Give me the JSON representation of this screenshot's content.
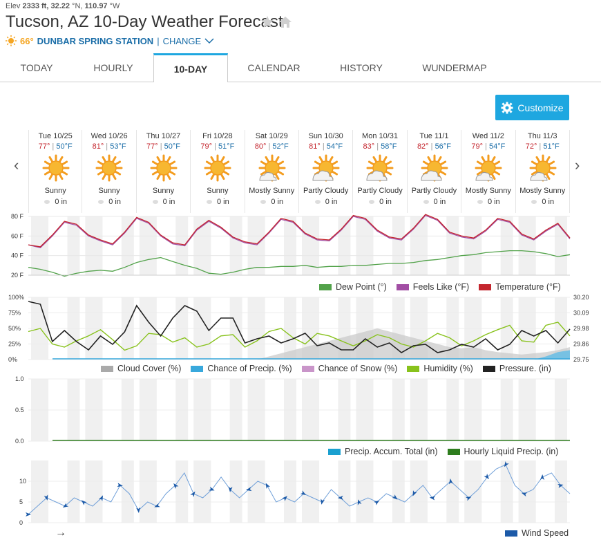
{
  "header": {
    "elev_label": "Elev",
    "elev_value": "2333 ft,",
    "lat": "32.22",
    "lat_unit": "°N,",
    "lon": "110.97",
    "lon_unit": "°W",
    "title": "Tucson, AZ 10-Day Weather Forecast",
    "current_temp": "66°",
    "station_name": "DUNBAR SPRING STATION",
    "separator": "|",
    "change_label": "CHANGE"
  },
  "tabs": [
    {
      "label": "TODAY"
    },
    {
      "label": "HOURLY"
    },
    {
      "label": "10-DAY",
      "active": true
    },
    {
      "label": "CALENDAR"
    },
    {
      "label": "HISTORY"
    },
    {
      "label": "WUNDERMAP"
    }
  ],
  "customize_label": "Customize",
  "days": [
    {
      "date": "Tue 10/25",
      "hi": "77°",
      "lo": "50°F",
      "cond": "Sunny",
      "precip": "0 in",
      "icon": "sunny-icon"
    },
    {
      "date": "Wed 10/26",
      "hi": "81°",
      "lo": "53°F",
      "cond": "Sunny",
      "precip": "0 in",
      "icon": "sunny-icon"
    },
    {
      "date": "Thu 10/27",
      "hi": "77°",
      "lo": "50°F",
      "cond": "Sunny",
      "precip": "0 in",
      "icon": "sunny-icon"
    },
    {
      "date": "Fri 10/28",
      "hi": "79°",
      "lo": "51°F",
      "cond": "Sunny",
      "precip": "0 in",
      "icon": "sunny-icon"
    },
    {
      "date": "Sat 10/29",
      "hi": "80°",
      "lo": "52°F",
      "cond": "Mostly Sunny",
      "precip": "0 in",
      "icon": "mostly-sunny-icon"
    },
    {
      "date": "Sun 10/30",
      "hi": "81°",
      "lo": "54°F",
      "cond": "Partly Cloudy",
      "precip": "0 in",
      "icon": "partly-cloudy-icon"
    },
    {
      "date": "Mon 10/31",
      "hi": "83°",
      "lo": "58°F",
      "cond": "Partly Cloudy",
      "precip": "0 in",
      "icon": "partly-cloudy-icon"
    },
    {
      "date": "Tue 11/1",
      "hi": "82°",
      "lo": "56°F",
      "cond": "Partly Cloudy",
      "precip": "0 in",
      "icon": "partly-cloudy-icon"
    },
    {
      "date": "Wed 11/2",
      "hi": "79°",
      "lo": "54°F",
      "cond": "Mostly Sunny",
      "precip": "0 in",
      "icon": "mostly-sunny-icon"
    },
    {
      "date": "Thu 11/3",
      "hi": "72°",
      "lo": "51°F",
      "cond": "Mostly Sunny",
      "precip": "0 in",
      "icon": "mostly-sunny-icon"
    }
  ],
  "colors": {
    "accent": "#1ea7e0",
    "high": "#c4262e",
    "low": "#1b6ea8",
    "dew_point": "#52a24a",
    "feels_like": "#a24ea4",
    "temperature": "#c4262e",
    "cloud": "#aaaaaa",
    "precip_chance": "#38a8dc",
    "snow_chance": "#c995c9",
    "humidity": "#88c21c",
    "pressure": "#222222",
    "precip_accum": "#1aa0d0",
    "hourly_precip": "#2e7d1e",
    "wind": "#1c5aa8"
  },
  "chart_data": [
    {
      "type": "line",
      "title": "",
      "yticks": [
        "80 F",
        "60 F",
        "40 F",
        "20 F"
      ],
      "ylim": [
        20,
        80
      ],
      "series": [
        {
          "name": "Dew Point (°)",
          "values": [
            28,
            26,
            23,
            19,
            22,
            24,
            25,
            24,
            28,
            33,
            36,
            38,
            34,
            30,
            27,
            22,
            21,
            23,
            26,
            28,
            28,
            29,
            29,
            30,
            28,
            29,
            29,
            30,
            30,
            31,
            32,
            32,
            33,
            35,
            36,
            38,
            40,
            41,
            43,
            44,
            45,
            45,
            44,
            42,
            39,
            41
          ]
        },
        {
          "name": "Feels Like (°F)",
          "values": [
            51,
            48,
            60,
            74,
            71,
            60,
            55,
            51,
            63,
            78,
            73,
            60,
            52,
            50,
            66,
            75,
            68,
            58,
            53,
            51,
            63,
            77,
            74,
            62,
            56,
            55,
            66,
            80,
            77,
            65,
            58,
            56,
            67,
            81,
            76,
            63,
            59,
            57,
            65,
            77,
            74,
            61,
            56,
            65,
            72,
            57
          ]
        },
        {
          "name": "Temperature (°F)",
          "values": [
            51,
            49,
            61,
            75,
            72,
            61,
            56,
            52,
            64,
            79,
            74,
            61,
            53,
            51,
            67,
            76,
            69,
            59,
            54,
            52,
            64,
            78,
            75,
            63,
            57,
            56,
            67,
            81,
            78,
            66,
            59,
            57,
            68,
            82,
            77,
            64,
            60,
            58,
            66,
            78,
            75,
            62,
            57,
            66,
            73,
            58
          ]
        }
      ]
    },
    {
      "type": "line",
      "yticks_left": [
        "100%",
        "75%",
        "50%",
        "25%",
        "0%"
      ],
      "yticks_right": [
        "30.20",
        "30.09",
        "29.98",
        "29.86",
        "29.75"
      ],
      "ylim": [
        0,
        100
      ],
      "series": [
        {
          "name": "Cloud Cover (%)",
          "values": [
            0,
            0,
            0,
            0,
            0,
            0,
            0,
            0,
            0,
            0,
            0,
            0,
            0,
            0,
            0,
            0,
            0,
            0,
            0,
            0,
            5,
            10,
            15,
            20,
            25,
            30,
            35,
            40,
            45,
            50,
            45,
            40,
            35,
            30,
            25,
            20,
            18,
            20,
            15,
            12,
            10,
            8,
            10,
            12,
            15,
            20
          ]
        },
        {
          "name": "Chance of Precip. (%)",
          "values": [
            0,
            0,
            0,
            0,
            0,
            0,
            0,
            0,
            0,
            0,
            0,
            0,
            0,
            0,
            0,
            0,
            0,
            0,
            0,
            0,
            0,
            0,
            0,
            0,
            0,
            0,
            0,
            0,
            0,
            0,
            0,
            0,
            0,
            0,
            0,
            0,
            0,
            0,
            0,
            0,
            0,
            0,
            0,
            5,
            12,
            15
          ]
        },
        {
          "name": "Chance of Snow (%)",
          "values": [
            0,
            0,
            0,
            0,
            0,
            0,
            0,
            0,
            0,
            0,
            0,
            0,
            0,
            0,
            0,
            0,
            0,
            0,
            0,
            0,
            0,
            0,
            0,
            0,
            0,
            0,
            0,
            0,
            0,
            0,
            0,
            0,
            0,
            0,
            0,
            0,
            0,
            0,
            0,
            0,
            0,
            0,
            0,
            0,
            0,
            0
          ]
        },
        {
          "name": "Humidity (%)",
          "values": [
            45,
            50,
            25,
            20,
            30,
            38,
            48,
            32,
            15,
            22,
            42,
            40,
            28,
            35,
            20,
            25,
            38,
            40,
            20,
            30,
            45,
            50,
            35,
            25,
            42,
            38,
            30,
            22,
            30,
            40,
            35,
            25,
            20,
            30,
            42,
            35,
            22,
            30,
            40,
            48,
            55,
            30,
            28,
            55,
            60,
            38
          ]
        },
        {
          "name": "Pressure. (in)",
          "values": [
            30.17,
            30.15,
            29.88,
            29.96,
            29.88,
            29.82,
            29.92,
            29.86,
            29.95,
            30.14,
            30.02,
            29.92,
            30.05,
            30.14,
            30.1,
            29.96,
            30.05,
            30.05,
            29.87,
            29.9,
            29.92,
            29.87,
            29.9,
            29.94,
            29.85,
            29.87,
            29.82,
            29.82,
            29.9,
            29.84,
            29.87,
            29.8,
            29.85,
            29.86,
            29.8,
            29.82,
            29.86,
            29.84,
            29.9,
            29.82,
            29.86,
            29.96,
            29.92,
            29.96,
            29.87,
            29.97
          ]
        }
      ]
    },
    {
      "type": "line",
      "yticks": [
        "1.0",
        "0.5",
        "0.0"
      ],
      "ylim": [
        0,
        1
      ],
      "series": [
        {
          "name": "Precip. Accum. Total (in)",
          "values": [
            0,
            0,
            0,
            0,
            0,
            0,
            0,
            0,
            0,
            0
          ]
        },
        {
          "name": "Hourly Liquid Precip. (in)",
          "values": [
            0,
            0,
            0,
            0,
            0,
            0,
            0,
            0,
            0,
            0
          ]
        }
      ]
    },
    {
      "type": "line",
      "yticks": [
        "10",
        "5",
        "0"
      ],
      "ylim": [
        0,
        15
      ],
      "series": [
        {
          "name": "Wind Speed",
          "values": [
            2,
            4,
            6,
            5,
            4,
            6,
            5,
            4,
            6,
            5,
            9,
            7,
            3,
            5,
            4,
            7,
            9,
            12,
            7,
            6,
            8,
            11,
            8,
            6,
            8,
            10,
            9,
            5,
            6,
            5,
            7,
            6,
            5,
            8,
            6,
            4,
            5,
            6,
            5,
            7,
            6,
            5,
            7,
            9,
            6,
            8,
            10,
            8,
            6,
            8,
            11,
            13,
            14,
            9,
            7,
            8,
            11,
            12,
            9,
            7
          ]
        }
      ]
    }
  ]
}
